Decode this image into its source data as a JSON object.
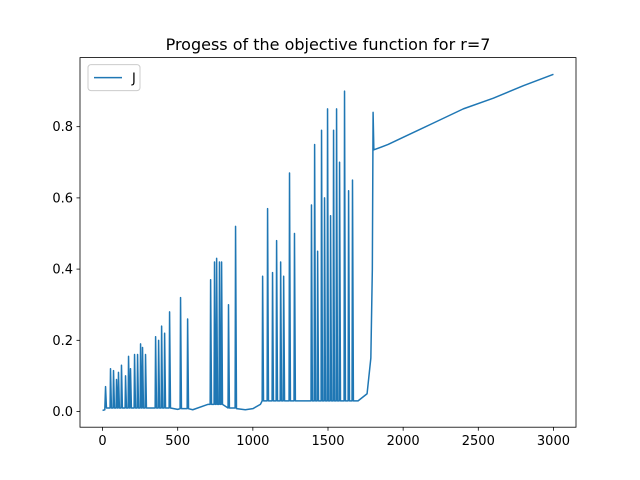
{
  "chart_data": {
    "type": "line",
    "title": "Progess of the objective function for r=7",
    "x": [
      0,
      15,
      20,
      26,
      50,
      53,
      59,
      70,
      73,
      79,
      90,
      93,
      99,
      103,
      106,
      112,
      123,
      126,
      132,
      150,
      153,
      159,
      170,
      173,
      179,
      183,
      186,
      192,
      210,
      213,
      219,
      230,
      233,
      239,
      250,
      253,
      259,
      263,
      266,
      272,
      283,
      286,
      292,
      340,
      350,
      353,
      359,
      370,
      373,
      379,
      390,
      393,
      399,
      410,
      413,
      419,
      443,
      446,
      452,
      500,
      516,
      519,
      525,
      563,
      566,
      572,
      600,
      700,
      716,
      719,
      725,
      742,
      745,
      751,
      756,
      759,
      765,
      775,
      778,
      784,
      789,
      792,
      798,
      835,
      838,
      844,
      882,
      885,
      891,
      950,
      1000,
      1050,
      1062,
      1065,
      1071,
      1095,
      1098,
      1104,
      1128,
      1131,
      1137,
      1155,
      1158,
      1164,
      1182,
      1185,
      1191,
      1202,
      1205,
      1211,
      1241,
      1244,
      1250,
      1274,
      1277,
      1283,
      1350,
      1387,
      1390,
      1396,
      1408,
      1411,
      1417,
      1428,
      1431,
      1437,
      1454,
      1457,
      1463,
      1474,
      1477,
      1483,
      1494,
      1497,
      1503,
      1514,
      1517,
      1523,
      1534,
      1537,
      1543,
      1554,
      1557,
      1563,
      1574,
      1577,
      1583,
      1607,
      1610,
      1616,
      1634,
      1637,
      1643,
      1660,
      1663,
      1669,
      1700,
      1760,
      1785,
      1795,
      1800,
      1805,
      1900,
      2000,
      2200,
      2400,
      2600,
      2800,
      3000
    ],
    "series": [
      {
        "name": "J",
        "color": "#1f77b4",
        "values": [
          0.003,
          0.005,
          0.07,
          0.01,
          0.01,
          0.12,
          0.01,
          0.01,
          0.115,
          0.01,
          0.01,
          0.09,
          0.01,
          0.01,
          0.11,
          0.01,
          0.01,
          0.13,
          0.01,
          0.01,
          0.1,
          0.01,
          0.01,
          0.155,
          0.01,
          0.01,
          0.12,
          0.01,
          0.01,
          0.16,
          0.01,
          0.01,
          0.16,
          0.01,
          0.01,
          0.19,
          0.01,
          0.01,
          0.18,
          0.01,
          0.01,
          0.16,
          0.01,
          0.01,
          0.01,
          0.21,
          0.01,
          0.01,
          0.2,
          0.01,
          0.01,
          0.24,
          0.01,
          0.01,
          0.22,
          0.01,
          0.01,
          0.28,
          0.01,
          0.006,
          0.008,
          0.32,
          0.008,
          0.008,
          0.26,
          0.008,
          0.005,
          0.02,
          0.02,
          0.37,
          0.02,
          0.02,
          0.42,
          0.02,
          0.02,
          0.43,
          0.02,
          0.02,
          0.42,
          0.02,
          0.02,
          0.42,
          0.02,
          0.01,
          0.3,
          0.01,
          0.01,
          0.52,
          0.008,
          0.005,
          0.008,
          0.02,
          0.03,
          0.38,
          0.03,
          0.03,
          0.57,
          0.03,
          0.03,
          0.39,
          0.03,
          0.03,
          0.48,
          0.03,
          0.03,
          0.42,
          0.03,
          0.03,
          0.38,
          0.03,
          0.03,
          0.67,
          0.03,
          0.03,
          0.5,
          0.03,
          0.03,
          0.03,
          0.58,
          0.03,
          0.03,
          0.75,
          0.03,
          0.03,
          0.45,
          0.03,
          0.03,
          0.79,
          0.03,
          0.03,
          0.6,
          0.03,
          0.03,
          0.85,
          0.03,
          0.03,
          0.55,
          0.03,
          0.03,
          0.79,
          0.03,
          0.03,
          0.85,
          0.03,
          0.03,
          0.7,
          0.03,
          0.03,
          0.9,
          0.03,
          0.03,
          0.62,
          0.03,
          0.03,
          0.65,
          0.03,
          0.03,
          0.05,
          0.15,
          0.4,
          0.84,
          0.735,
          0.75,
          0.77,
          0.81,
          0.85,
          0.88,
          0.915,
          0.947
        ]
      }
    ],
    "xlim": [
      -150,
      3150
    ],
    "xticks": [
      0,
      500,
      1000,
      1500,
      2000,
      2500,
      3000
    ],
    "ylim": [
      -0.044,
      0.994
    ],
    "yticks": [
      {
        "value": 0,
        "label": "0.0"
      },
      0.2,
      0.4,
      0.6,
      0.8
    ],
    "legend": "upper left"
  }
}
